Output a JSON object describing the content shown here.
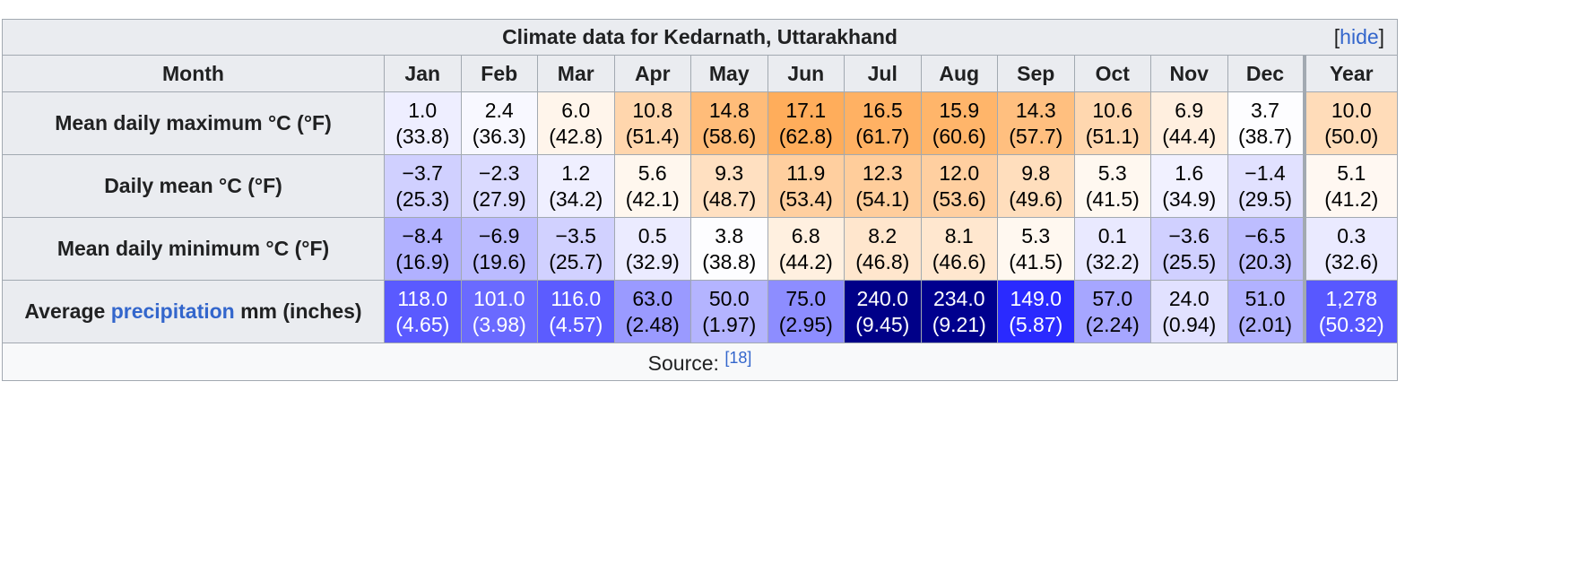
{
  "caption": {
    "title": "Climate data for Kedarnath, Uttarakhand",
    "hide_open": "[",
    "hide_label": "hide",
    "hide_close": "]"
  },
  "header": {
    "month_label": "Month",
    "months": [
      "Jan",
      "Feb",
      "Mar",
      "Apr",
      "May",
      "Jun",
      "Jul",
      "Aug",
      "Sep",
      "Oct",
      "Nov",
      "Dec"
    ],
    "year_label": "Year"
  },
  "rows": [
    {
      "label": "Mean daily maximum °C (°F)",
      "cells": [
        {
          "c": "1.0",
          "f": "(33.8)",
          "bg": "#eeeeff",
          "fg": "#000000"
        },
        {
          "c": "2.4",
          "f": "(36.3)",
          "bg": "#f8f8ff",
          "fg": "#000000"
        },
        {
          "c": "6.0",
          "f": "(42.8)",
          "bg": "#fff5eb",
          "fg": "#000000"
        },
        {
          "c": "10.8",
          "f": "(51.4)",
          "bg": "#ffd6ad",
          "fg": "#000000"
        },
        {
          "c": "14.8",
          "f": "(58.6)",
          "bg": "#ffbc79",
          "fg": "#000000"
        },
        {
          "c": "17.1",
          "f": "(62.8)",
          "bg": "#ffad5b",
          "fg": "#000000"
        },
        {
          "c": "16.5",
          "f": "(61.7)",
          "bg": "#ffb163",
          "fg": "#000000"
        },
        {
          "c": "15.9",
          "f": "(60.6)",
          "bg": "#ffb56a",
          "fg": "#000000"
        },
        {
          "c": "14.3",
          "f": "(57.7)",
          "bg": "#ffbf7f",
          "fg": "#000000"
        },
        {
          "c": "10.6",
          "f": "(51.1)",
          "bg": "#ffd7af",
          "fg": "#000000"
        },
        {
          "c": "6.9",
          "f": "(44.4)",
          "bg": "#ffefdf",
          "fg": "#000000"
        },
        {
          "c": "3.7",
          "f": "(38.7)",
          "bg": "#fdfdff",
          "fg": "#000000"
        }
      ],
      "year": {
        "c": "10.0",
        "f": "(50.0)",
        "bg": "#ffdcb9",
        "fg": "#000000"
      }
    },
    {
      "label": "Daily mean °C (°F)",
      "cells": [
        {
          "c": "−3.7",
          "f": "(25.3)",
          "bg": "#d0d0ff",
          "fg": "#000000"
        },
        {
          "c": "−2.3",
          "f": "(27.9)",
          "bg": "#dadaff",
          "fg": "#000000"
        },
        {
          "c": "1.2",
          "f": "(34.2)",
          "bg": "#efefff",
          "fg": "#000000"
        },
        {
          "c": "5.6",
          "f": "(42.1)",
          "bg": "#fff7ee",
          "fg": "#000000"
        },
        {
          "c": "9.3",
          "f": "(48.7)",
          "bg": "#ffe0c1",
          "fg": "#000000"
        },
        {
          "c": "11.9",
          "f": "(53.4)",
          "bg": "#ffcf9f",
          "fg": "#000000"
        },
        {
          "c": "12.3",
          "f": "(54.1)",
          "bg": "#ffcd9b",
          "fg": "#000000"
        },
        {
          "c": "12.0",
          "f": "(53.6)",
          "bg": "#ffcfa0",
          "fg": "#000000"
        },
        {
          "c": "9.8",
          "f": "(49.6)",
          "bg": "#ffdebd",
          "fg": "#000000"
        },
        {
          "c": "5.3",
          "f": "(41.5)",
          "bg": "#fff8f0",
          "fg": "#000000"
        },
        {
          "c": "1.6",
          "f": "(34.9)",
          "bg": "#f1f1ff",
          "fg": "#000000"
        },
        {
          "c": "−1.4",
          "f": "(29.5)",
          "bg": "#e1e1ff",
          "fg": "#000000"
        }
      ],
      "year": {
        "c": "5.1",
        "f": "(41.2)",
        "bg": "#fff8f2",
        "fg": "#000000"
      }
    },
    {
      "label": "Mean daily minimum °C (°F)",
      "cells": [
        {
          "c": "−8.4",
          "f": "(16.9)",
          "bg": "#b1b1ff",
          "fg": "#000000"
        },
        {
          "c": "−6.9",
          "f": "(19.6)",
          "bg": "#bbbbff",
          "fg": "#000000"
        },
        {
          "c": "−3.5",
          "f": "(25.7)",
          "bg": "#d1d1ff",
          "fg": "#000000"
        },
        {
          "c": "0.5",
          "f": "(32.9)",
          "bg": "#ebebff",
          "fg": "#000000"
        },
        {
          "c": "3.8",
          "f": "(38.8)",
          "bg": "#fdfdff",
          "fg": "#000000"
        },
        {
          "c": "6.8",
          "f": "(44.2)",
          "bg": "#fff0e0",
          "fg": "#000000"
        },
        {
          "c": "8.2",
          "f": "(46.8)",
          "bg": "#ffe6cd",
          "fg": "#000000"
        },
        {
          "c": "8.1",
          "f": "(46.6)",
          "bg": "#ffe7cf",
          "fg": "#000000"
        },
        {
          "c": "5.3",
          "f": "(41.5)",
          "bg": "#fff8f0",
          "fg": "#000000"
        },
        {
          "c": "0.1",
          "f": "(32.2)",
          "bg": "#e9e9ff",
          "fg": "#000000"
        },
        {
          "c": "−3.6",
          "f": "(25.5)",
          "bg": "#d0d0ff",
          "fg": "#000000"
        },
        {
          "c": "−6.5",
          "f": "(20.3)",
          "bg": "#bdbdff",
          "fg": "#000000"
        }
      ],
      "year": {
        "c": "0.3",
        "f": "(32.6)",
        "bg": "#eaeaff",
        "fg": "#000000"
      }
    },
    {
      "label_pre": "Average ",
      "label_link": "precipitation",
      "label_post": " mm (inches)",
      "cells": [
        {
          "c": "118.0",
          "f": "(4.65)",
          "bg": "#5a5aff",
          "fg": "#ffffff"
        },
        {
          "c": "101.0",
          "f": "(3.98)",
          "bg": "#6a6aff",
          "fg": "#ffffff"
        },
        {
          "c": "116.0",
          "f": "(4.57)",
          "bg": "#5c5cff",
          "fg": "#ffffff"
        },
        {
          "c": "63.0",
          "f": "(2.48)",
          "bg": "#9a9aff",
          "fg": "#000000"
        },
        {
          "c": "50.0",
          "f": "(1.97)",
          "bg": "#b4b4ff",
          "fg": "#000000"
        },
        {
          "c": "75.0",
          "f": "(2.95)",
          "bg": "#8d8dff",
          "fg": "#000000"
        },
        {
          "c": "240.0",
          "f": "(9.45)",
          "bg": "#000088",
          "fg": "#ffffff"
        },
        {
          "c": "234.0",
          "f": "(9.21)",
          "bg": "#00008e",
          "fg": "#ffffff"
        },
        {
          "c": "149.0",
          "f": "(5.87)",
          "bg": "#2a2aff",
          "fg": "#ffffff"
        },
        {
          "c": "57.0",
          "f": "(2.24)",
          "bg": "#a6a6ff",
          "fg": "#000000"
        },
        {
          "c": "24.0",
          "f": "(0.94)",
          "bg": "#e1e1ff",
          "fg": "#000000"
        },
        {
          "c": "51.0",
          "f": "(2.01)",
          "bg": "#b1b1ff",
          "fg": "#000000"
        }
      ],
      "year": {
        "c": "1,278",
        "f": "(50.32)",
        "bg": "#5858ff",
        "fg": "#ffffff"
      }
    }
  ],
  "source": {
    "label": "Source: ",
    "ref": "[18]"
  }
}
